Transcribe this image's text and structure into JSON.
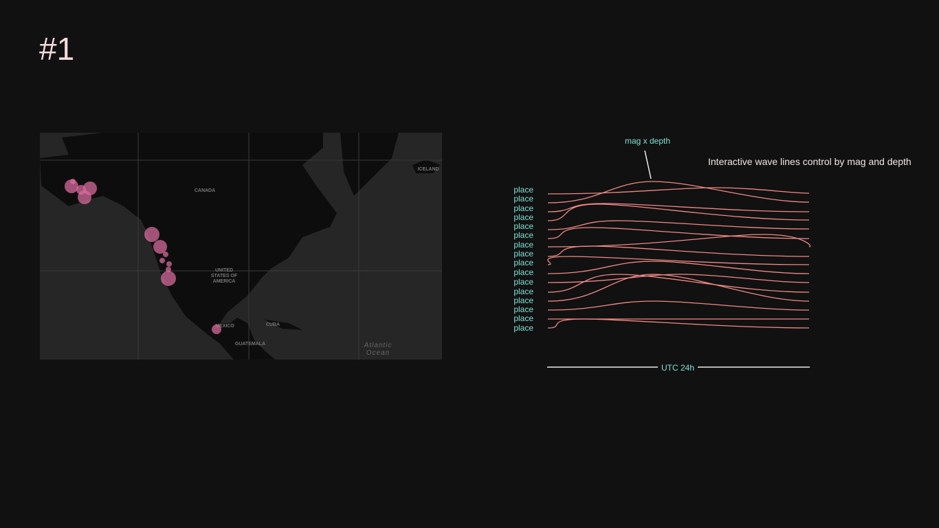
{
  "header": {
    "title": "#1"
  },
  "map": {
    "labels": [
      "CANADA",
      "UNITED",
      "STATES OF",
      "AMERICA",
      "MEXICO",
      "CUBA",
      "GUATEMALA",
      "Atlantic",
      "Ocean",
      "ICELAND"
    ]
  },
  "waves": {
    "annotation": "mag x depth",
    "description": "Interactive wave lines control by mag and depth",
    "labels": [
      "place",
      "place",
      "place",
      "place",
      "place",
      "place",
      "place",
      "place",
      "place",
      "place",
      "place",
      "place",
      "place",
      "place",
      "place",
      "place"
    ],
    "axis_label": "UTC 24h"
  }
}
